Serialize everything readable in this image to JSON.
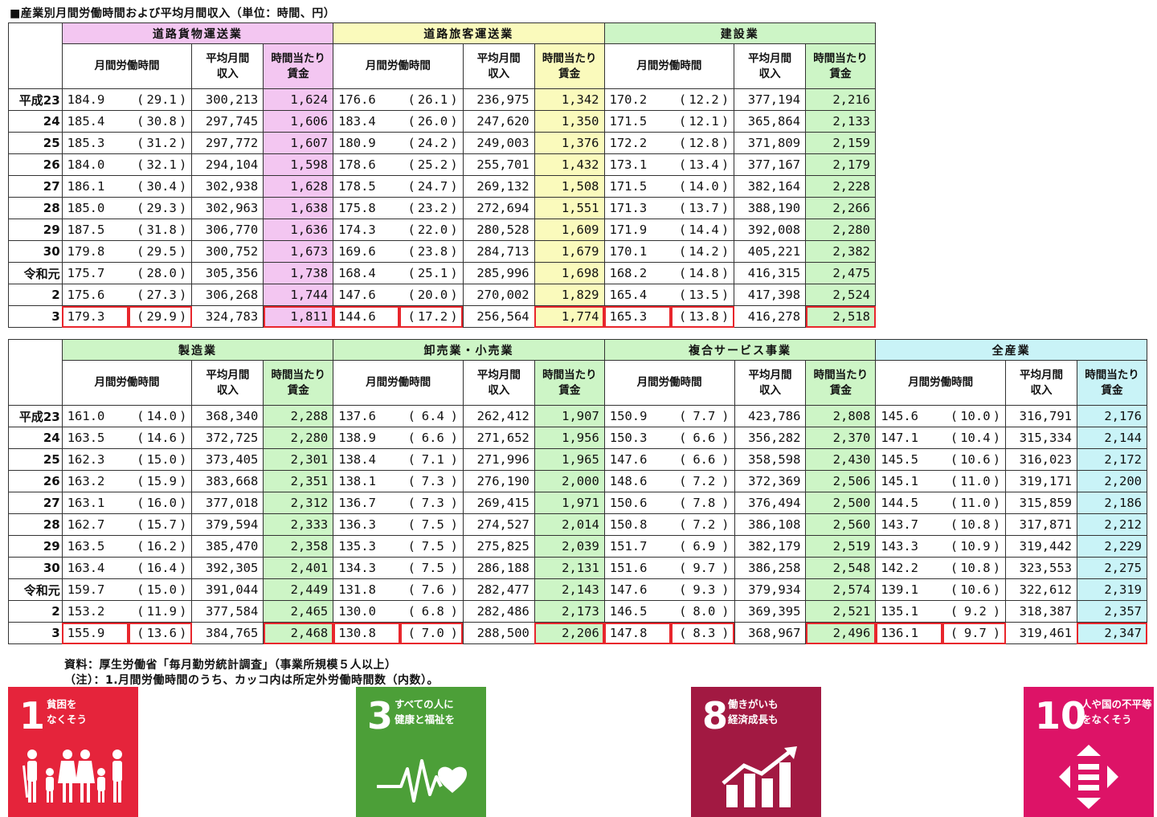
{
  "title": "■産業別月間労働時間および平均月間収入（単位：時間、円）",
  "subheaders": {
    "hours": [
      "月間労働時間"
    ],
    "income": [
      "平均月間",
      "収入"
    ],
    "wage": [
      "時間当たり",
      "賃金"
    ]
  },
  "years": [
    "平成23",
    "24",
    "25",
    "26",
    "27",
    "28",
    "29",
    "30",
    "令和元",
    "2",
    "3"
  ],
  "tables": [
    {
      "industries": [
        {
          "name": "道路貨物運送業",
          "color": "#f3c6f1",
          "rows": [
            [
              "184.9",
              "29.1",
              "300,213",
              "1,624"
            ],
            [
              "185.4",
              "30.8",
              "297,745",
              "1,606"
            ],
            [
              "185.3",
              "31.2",
              "297,772",
              "1,607"
            ],
            [
              "184.0",
              "32.1",
              "294,104",
              "1,598"
            ],
            [
              "186.1",
              "30.4",
              "302,938",
              "1,628"
            ],
            [
              "185.0",
              "29.3",
              "302,963",
              "1,638"
            ],
            [
              "187.5",
              "31.8",
              "306,770",
              "1,636"
            ],
            [
              "179.8",
              "29.5",
              "300,752",
              "1,673"
            ],
            [
              "175.7",
              "28.0",
              "305,356",
              "1,738"
            ],
            [
              "175.6",
              "27.3",
              "306,268",
              "1,744"
            ],
            [
              "179.3",
              "29.9",
              "324,783",
              "1,811"
            ]
          ]
        },
        {
          "name": "道路旅客運送業",
          "color": "#fafabc",
          "rows": [
            [
              "176.6",
              "26.1",
              "236,975",
              "1,342"
            ],
            [
              "183.4",
              "26.0",
              "247,620",
              "1,350"
            ],
            [
              "180.9",
              "24.2",
              "249,003",
              "1,376"
            ],
            [
              "178.6",
              "25.2",
              "255,701",
              "1,432"
            ],
            [
              "178.5",
              "24.7",
              "269,132",
              "1,508"
            ],
            [
              "175.8",
              "23.2",
              "272,694",
              "1,551"
            ],
            [
              "174.3",
              "22.0",
              "280,528",
              "1,609"
            ],
            [
              "169.6",
              "23.8",
              "284,713",
              "1,679"
            ],
            [
              "168.4",
              "25.1",
              "285,996",
              "1,698"
            ],
            [
              "147.6",
              "20.0",
              "270,002",
              "1,829"
            ],
            [
              "144.6",
              "17.2",
              "256,564",
              "1,774"
            ]
          ]
        },
        {
          "name": "建設業",
          "color": "#cdf5c6",
          "rows": [
            [
              "170.2",
              "12.2",
              "377,194",
              "2,216"
            ],
            [
              "171.5",
              "12.1",
              "365,864",
              "2,133"
            ],
            [
              "172.2",
              "12.8",
              "371,809",
              "2,159"
            ],
            [
              "173.1",
              "13.4",
              "377,167",
              "2,179"
            ],
            [
              "171.5",
              "14.0",
              "382,164",
              "2,228"
            ],
            [
              "171.3",
              "13.7",
              "388,190",
              "2,266"
            ],
            [
              "171.9",
              "14.4",
              "392,008",
              "2,280"
            ],
            [
              "170.1",
              "14.2",
              "405,221",
              "2,382"
            ],
            [
              "168.2",
              "14.8",
              "416,315",
              "2,475"
            ],
            [
              "165.4",
              "13.5",
              "417,398",
              "2,524"
            ],
            [
              "165.3",
              "13.8",
              "416,278",
              "2,518"
            ]
          ]
        }
      ]
    },
    {
      "industries": [
        {
          "name": "製造業",
          "color": "#cdf5c6",
          "rows": [
            [
              "161.0",
              "14.0",
              "368,340",
              "2,288"
            ],
            [
              "163.5",
              "14.6",
              "372,725",
              "2,280"
            ],
            [
              "162.3",
              "15.0",
              "373,405",
              "2,301"
            ],
            [
              "163.2",
              "15.9",
              "383,668",
              "2,351"
            ],
            [
              "163.1",
              "16.0",
              "377,018",
              "2,312"
            ],
            [
              "162.7",
              "15.7",
              "379,594",
              "2,333"
            ],
            [
              "163.5",
              "16.2",
              "385,470",
              "2,358"
            ],
            [
              "163.4",
              "16.4",
              "392,305",
              "2,401"
            ],
            [
              "159.7",
              "15.0",
              "391,044",
              "2,449"
            ],
            [
              "153.2",
              "11.9",
              "377,584",
              "2,465"
            ],
            [
              "155.9",
              "13.6",
              "384,765",
              "2,468"
            ]
          ]
        },
        {
          "name": "卸売業・小売業",
          "color": "#cdf5c6",
          "rows": [
            [
              "137.6",
              "6.4",
              "262,412",
              "1,907"
            ],
            [
              "138.9",
              "6.6",
              "271,652",
              "1,956"
            ],
            [
              "138.4",
              "7.1",
              "271,996",
              "1,965"
            ],
            [
              "138.1",
              "7.3",
              "276,190",
              "2,000"
            ],
            [
              "136.7",
              "7.3",
              "269,415",
              "1,971"
            ],
            [
              "136.3",
              "7.5",
              "274,527",
              "2,014"
            ],
            [
              "135.3",
              "7.5",
              "275,825",
              "2,039"
            ],
            [
              "134.3",
              "7.5",
              "286,188",
              "2,131"
            ],
            [
              "131.8",
              "7.6",
              "282,477",
              "2,143"
            ],
            [
              "130.0",
              "6.8",
              "282,486",
              "2,173"
            ],
            [
              "130.8",
              "7.0",
              "288,500",
              "2,206"
            ]
          ]
        },
        {
          "name": "複合サービス事業",
          "color": "#cdf5c6",
          "rows": [
            [
              "150.9",
              "7.7",
              "423,786",
              "2,808"
            ],
            [
              "150.3",
              "6.6",
              "356,282",
              "2,370"
            ],
            [
              "147.6",
              "6.6",
              "358,598",
              "2,430"
            ],
            [
              "148.6",
              "7.2",
              "372,369",
              "2,506"
            ],
            [
              "150.6",
              "7.8",
              "376,494",
              "2,500"
            ],
            [
              "150.8",
              "7.2",
              "386,108",
              "2,560"
            ],
            [
              "151.7",
              "6.9",
              "382,179",
              "2,519"
            ],
            [
              "151.6",
              "9.7",
              "386,258",
              "2,548"
            ],
            [
              "147.6",
              "9.3",
              "379,934",
              "2,574"
            ],
            [
              "146.5",
              "8.0",
              "369,395",
              "2,521"
            ],
            [
              "147.8",
              "8.3",
              "368,967",
              "2,496"
            ]
          ]
        },
        {
          "name": "全産業",
          "color": "#c9f3f7",
          "rows": [
            [
              "145.6",
              "10.0",
              "316,791",
              "2,176"
            ],
            [
              "147.1",
              "10.4",
              "315,334",
              "2,144"
            ],
            [
              "145.5",
              "10.6",
              "316,023",
              "2,172"
            ],
            [
              "145.1",
              "11.0",
              "319,171",
              "2,200"
            ],
            [
              "144.5",
              "11.0",
              "315,859",
              "2,186"
            ],
            [
              "143.7",
              "10.8",
              "317,871",
              "2,212"
            ],
            [
              "143.3",
              "10.9",
              "319,442",
              "2,229"
            ],
            [
              "142.2",
              "10.8",
              "323,553",
              "2,275"
            ],
            [
              "139.1",
              "10.6",
              "322,612",
              "2,319"
            ],
            [
              "135.1",
              "9.2",
              "318,387",
              "2,357"
            ],
            [
              "136.1",
              "9.7",
              "319,461",
              "2,347"
            ]
          ]
        }
      ]
    }
  ],
  "notes": [
    "資料：厚生労働省「毎月勤労統計調査」（事業所規模５人以上）",
    "（注）：1.月間労働時間のうち、カッコ内は所定外労働時間数（内数）。"
  ],
  "sdgs": [
    {
      "num": "1",
      "label": "貧困を\nなくそう",
      "color": "#e5243b",
      "icon": "family-icon"
    },
    {
      "num": "3",
      "label": "すべての人に\n健康と福祉を",
      "color": "#4c9f38",
      "icon": "heartbeat-icon"
    },
    {
      "num": "8",
      "label": "働きがいも\n経済成長も",
      "color": "#a21942",
      "icon": "growth-chart-icon"
    },
    {
      "num": "10",
      "label": "人や国の不平等\nをなくそう",
      "color": "#dd1367",
      "icon": "equality-icon"
    }
  ]
}
